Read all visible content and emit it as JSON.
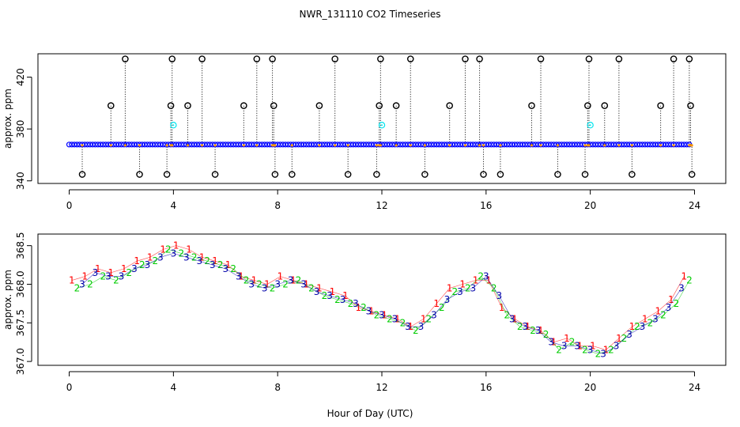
{
  "title": "NWR_131110  CO2 Timeseries",
  "xlabel": "Hour of Day (UTC)",
  "colors": {
    "blue": "#0000ff",
    "cyan": "#00e5ee",
    "red": "#ff0000",
    "green": "#00cc00",
    "navy": "#0000aa",
    "black": "#000000",
    "orange": "#ff9900"
  },
  "chart_data": [
    {
      "type": "scatter",
      "ylabel": "approx. ppm",
      "xlim": [
        -1.2,
        25.2
      ],
      "ylim": [
        338,
        438
      ],
      "xticks": [
        0,
        4,
        8,
        12,
        16,
        20,
        24
      ],
      "yticks": [
        340,
        380,
        420
      ],
      "baseline": {
        "y": 368,
        "x_start": 0,
        "x_end": 23.8,
        "step": 0.1,
        "color": "blue"
      },
      "outliers_high": [
        {
          "x": 2.15,
          "y": 434
        },
        {
          "x": 3.95,
          "y": 434
        },
        {
          "x": 5.1,
          "y": 434
        },
        {
          "x": 7.2,
          "y": 434
        },
        {
          "x": 7.8,
          "y": 434
        },
        {
          "x": 10.2,
          "y": 434
        },
        {
          "x": 11.95,
          "y": 434
        },
        {
          "x": 13.1,
          "y": 434
        },
        {
          "x": 15.2,
          "y": 434
        },
        {
          "x": 15.75,
          "y": 434
        },
        {
          "x": 18.1,
          "y": 434
        },
        {
          "x": 19.95,
          "y": 434
        },
        {
          "x": 21.1,
          "y": 434
        },
        {
          "x": 23.2,
          "y": 434
        },
        {
          "x": 23.8,
          "y": 434
        }
      ],
      "outliers_mid": [
        {
          "x": 1.6,
          "y": 398
        },
        {
          "x": 3.9,
          "y": 398
        },
        {
          "x": 4.55,
          "y": 398
        },
        {
          "x": 6.7,
          "y": 398
        },
        {
          "x": 7.85,
          "y": 398
        },
        {
          "x": 9.6,
          "y": 398
        },
        {
          "x": 11.9,
          "y": 398
        },
        {
          "x": 12.55,
          "y": 398
        },
        {
          "x": 14.6,
          "y": 398
        },
        {
          "x": 17.75,
          "y": 398
        },
        {
          "x": 19.9,
          "y": 398
        },
        {
          "x": 20.55,
          "y": 398
        },
        {
          "x": 22.7,
          "y": 398
        },
        {
          "x": 23.85,
          "y": 398
        }
      ],
      "outliers_low": [
        {
          "x": 0.5,
          "y": 345
        },
        {
          "x": 2.7,
          "y": 345
        },
        {
          "x": 3.75,
          "y": 345
        },
        {
          "x": 5.6,
          "y": 345
        },
        {
          "x": 7.9,
          "y": 345
        },
        {
          "x": 8.55,
          "y": 345
        },
        {
          "x": 10.7,
          "y": 345
        },
        {
          "x": 11.8,
          "y": 345
        },
        {
          "x": 13.65,
          "y": 345
        },
        {
          "x": 15.9,
          "y": 345
        },
        {
          "x": 16.55,
          "y": 345
        },
        {
          "x": 18.75,
          "y": 345
        },
        {
          "x": 19.8,
          "y": 345
        },
        {
          "x": 21.6,
          "y": 345
        },
        {
          "x": 23.9,
          "y": 345
        }
      ],
      "cyan_points": [
        {
          "x": 4.0,
          "y": 383
        },
        {
          "x": 12.0,
          "y": 383
        },
        {
          "x": 20.0,
          "y": 383
        }
      ]
    },
    {
      "type": "scatter",
      "ylabel": "approx. ppm",
      "xlim": [
        -1.2,
        25.2
      ],
      "ylim": [
        366.95,
        368.65
      ],
      "xticks": [
        0,
        4,
        8,
        12,
        16,
        20,
        24
      ],
      "yticks": [
        367.0,
        367.5,
        368.0,
        368.5
      ],
      "ytick_labels": [
        "367.0",
        "367.5",
        "368.0",
        "368.5"
      ],
      "series": [
        {
          "name": "1",
          "color": "red",
          "x": [
            0.1,
            0.6,
            1.1,
            1.6,
            2.1,
            2.6,
            3.1,
            3.6,
            4.1,
            4.6,
            5.1,
            5.6,
            6.1,
            6.6,
            7.1,
            7.6,
            8.1,
            8.6,
            9.1,
            9.6,
            10.1,
            10.6,
            11.1,
            11.6,
            12.1,
            12.6,
            13.1,
            13.6,
            14.1,
            14.6,
            15.1,
            15.6,
            16.1,
            16.6,
            17.1,
            17.6,
            18.1,
            18.6,
            19.1,
            19.6,
            20.1,
            20.6,
            21.1,
            21.6,
            22.1,
            22.6,
            23.1,
            23.6
          ],
          "y": [
            368.05,
            368.1,
            368.2,
            368.15,
            368.2,
            368.3,
            368.35,
            368.45,
            368.5,
            368.45,
            368.35,
            368.3,
            368.25,
            368.1,
            368.05,
            368.0,
            368.1,
            368.05,
            368.0,
            367.95,
            367.9,
            367.85,
            367.7,
            367.65,
            367.6,
            367.55,
            367.45,
            367.55,
            367.75,
            367.95,
            368.0,
            368.05,
            368.05,
            367.7,
            367.55,
            367.45,
            367.4,
            367.25,
            367.3,
            367.2,
            367.2,
            367.15,
            367.3,
            367.45,
            367.55,
            367.65,
            367.8,
            368.1
          ]
        },
        {
          "name": "2",
          "color": "green",
          "x": [
            0.3,
            0.8,
            1.3,
            1.8,
            2.3,
            2.8,
            3.3,
            3.8,
            4.3,
            4.8,
            5.3,
            5.8,
            6.3,
            6.8,
            7.3,
            7.8,
            8.3,
            8.8,
            9.3,
            9.8,
            10.3,
            10.8,
            11.3,
            11.8,
            12.3,
            12.8,
            13.3,
            13.8,
            14.3,
            14.8,
            15.3,
            15.8,
            16.3,
            16.8,
            17.3,
            17.8,
            18.3,
            18.8,
            19.3,
            19.8,
            20.3,
            20.8,
            21.3,
            21.8,
            22.3,
            22.8,
            23.3,
            23.8
          ],
          "y": [
            367.95,
            368.0,
            368.1,
            368.05,
            368.15,
            368.25,
            368.3,
            368.45,
            368.4,
            368.35,
            368.3,
            368.25,
            368.2,
            368.05,
            368.0,
            367.95,
            368.0,
            368.05,
            367.95,
            367.85,
            367.8,
            367.75,
            367.7,
            367.6,
            367.55,
            367.5,
            367.4,
            367.55,
            367.7,
            367.9,
            367.95,
            368.1,
            367.95,
            367.6,
            367.45,
            367.4,
            367.35,
            367.15,
            367.25,
            367.15,
            367.1,
            367.15,
            367.3,
            367.45,
            367.5,
            367.6,
            367.75,
            368.05
          ]
        },
        {
          "name": "3",
          "color": "navy",
          "x": [
            0.5,
            1.0,
            1.5,
            2.0,
            2.5,
            3.0,
            3.5,
            4.0,
            4.5,
            5.0,
            5.5,
            6.0,
            6.5,
            7.0,
            7.5,
            8.0,
            8.5,
            9.0,
            9.5,
            10.0,
            10.5,
            11.0,
            11.5,
            12.0,
            12.5,
            13.0,
            13.5,
            14.0,
            14.5,
            15.0,
            15.5,
            16.0,
            16.5,
            17.0,
            17.5,
            18.0,
            18.5,
            19.0,
            19.5,
            20.0,
            20.5,
            21.0,
            21.5,
            22.0,
            22.5,
            23.0,
            23.5
          ],
          "y": [
            368.0,
            368.15,
            368.1,
            368.1,
            368.2,
            368.25,
            368.35,
            368.4,
            368.35,
            368.3,
            368.25,
            368.2,
            368.1,
            368.0,
            367.95,
            368.0,
            368.05,
            368.0,
            367.9,
            367.85,
            367.8,
            367.75,
            367.65,
            367.6,
            367.55,
            367.45,
            367.45,
            367.6,
            367.8,
            367.9,
            367.95,
            368.1,
            367.85,
            367.55,
            367.45,
            367.4,
            367.25,
            367.2,
            367.2,
            367.15,
            367.1,
            367.2,
            367.35,
            367.45,
            367.55,
            367.7,
            367.95
          ]
        }
      ]
    }
  ]
}
